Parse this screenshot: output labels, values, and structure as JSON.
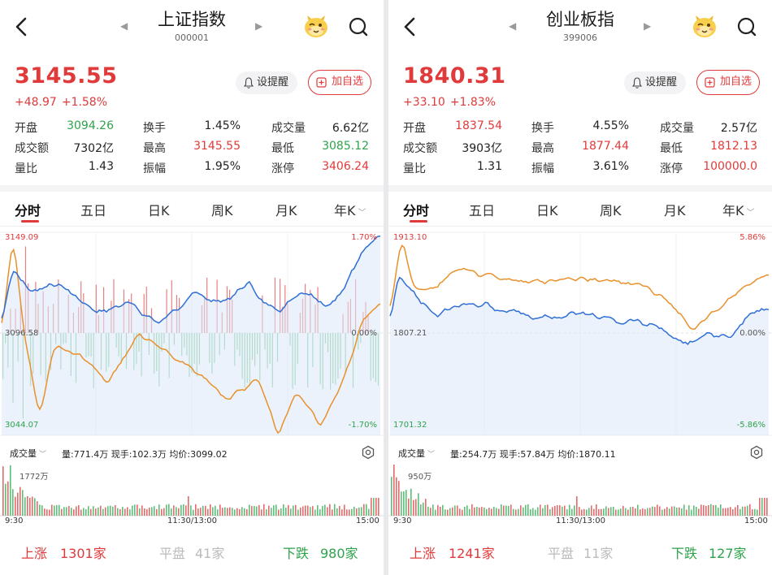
{
  "panels": [
    {
      "title": "上证指数",
      "code": "000001",
      "price": "3145.55",
      "change": "+48.97",
      "change_pct": "+1.58%",
      "buttons": {
        "alert": "设提醒",
        "add": "加自选"
      },
      "stats": [
        [
          {
            "label": "开盘",
            "value": "3094.26",
            "color": "green"
          },
          {
            "label": "换手",
            "value": "1.45%",
            "color": "dark"
          },
          {
            "label": "成交量",
            "value": "6.62亿",
            "color": "dark"
          }
        ],
        [
          {
            "label": "成交额",
            "value": "7302亿",
            "color": "dark"
          },
          {
            "label": "最高",
            "value": "3145.55",
            "color": "red"
          },
          {
            "label": "最低",
            "value": "3085.12",
            "color": "green"
          }
        ],
        [
          {
            "label": "量比",
            "value": "1.43",
            "color": "dark"
          },
          {
            "label": "振幅",
            "value": "1.95%",
            "color": "dark"
          },
          {
            "label": "涨停",
            "value": "3406.24",
            "color": "red"
          }
        ]
      ],
      "tabs": [
        "分时",
        "五日",
        "日K",
        "周K",
        "月K",
        "年K"
      ],
      "axis": {
        "top_left": "3149.09",
        "mid_left": "3096.58",
        "bottom_left": "3044.07",
        "top_right": "1.70%",
        "mid_right": "0.00%",
        "bottom_right": "-1.70%"
      },
      "volume": {
        "selector": "成交量",
        "info": "量:771.4万  现手:102.3万  均价:3099.02",
        "max": "1772万"
      },
      "time_axis": [
        "9:30",
        "11:30/13:00",
        "15:00"
      ],
      "breadth": {
        "up_label": "上涨",
        "up": "1301家",
        "flat_label": "平盘",
        "flat": "41家",
        "down_label": "下跌",
        "down": "980家"
      }
    },
    {
      "title": "创业板指",
      "code": "399006",
      "price": "1840.31",
      "change": "+33.10",
      "change_pct": "+1.83%",
      "buttons": {
        "alert": "设提醒",
        "add": "加自选"
      },
      "stats": [
        [
          {
            "label": "开盘",
            "value": "1837.54",
            "color": "red"
          },
          {
            "label": "换手",
            "value": "4.55%",
            "color": "dark"
          },
          {
            "label": "成交量",
            "value": "2.57亿",
            "color": "dark"
          }
        ],
        [
          {
            "label": "成交额",
            "value": "3903亿",
            "color": "dark"
          },
          {
            "label": "最高",
            "value": "1877.44",
            "color": "red"
          },
          {
            "label": "最低",
            "value": "1812.13",
            "color": "red"
          }
        ],
        [
          {
            "label": "量比",
            "value": "1.31",
            "color": "dark"
          },
          {
            "label": "振幅",
            "value": "3.61%",
            "color": "dark"
          },
          {
            "label": "涨停",
            "value": "100000.0",
            "color": "red"
          }
        ]
      ],
      "tabs": [
        "分时",
        "五日",
        "日K",
        "周K",
        "月K",
        "年K"
      ],
      "axis": {
        "top_left": "1913.10",
        "mid_left": "1807.21",
        "bottom_left": "1701.32",
        "top_right": "5.86%",
        "mid_right": "0.00%",
        "bottom_right": "-5.86%"
      },
      "volume": {
        "selector": "成交量",
        "info": "量:254.7万  现手:57.84万  均价:1870.11",
        "max": "950万"
      },
      "time_axis": [
        "9:30",
        "11:30/13:00",
        "15:00"
      ],
      "breadth": {
        "up_label": "上涨",
        "up": "1241家",
        "flat_label": "平盘",
        "flat": "11家",
        "down_label": "下跌",
        "down": "127家"
      }
    }
  ],
  "colors": {
    "up": "#e03a3a",
    "down": "#2ea34b",
    "price_line": "#2f6fd6",
    "avg_line": "#e8912c",
    "flat": "#bbbbbb"
  },
  "icons": [
    "back-arrow-icon",
    "prev-arrow-icon",
    "next-arrow-icon",
    "mascot-icon",
    "search-icon",
    "bell-icon",
    "plus-icon",
    "chevron-down-icon",
    "settings-icon"
  ]
}
